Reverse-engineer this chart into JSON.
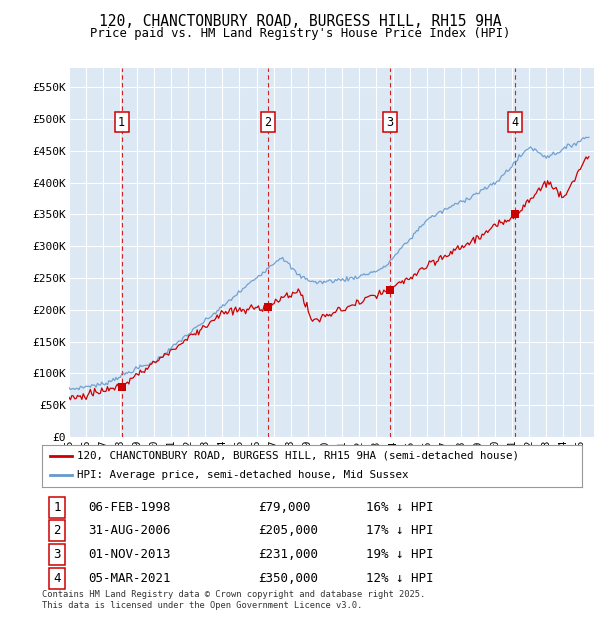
{
  "title_line1": "120, CHANCTONBURY ROAD, BURGESS HILL, RH15 9HA",
  "title_line2": "Price paid vs. HM Land Registry's House Price Index (HPI)",
  "ylim": [
    0,
    580000
  ],
  "yticks": [
    0,
    50000,
    100000,
    150000,
    200000,
    250000,
    300000,
    350000,
    400000,
    450000,
    500000,
    550000
  ],
  "ytick_labels": [
    "£0",
    "£50K",
    "£100K",
    "£150K",
    "£200K",
    "£250K",
    "£300K",
    "£350K",
    "£400K",
    "£450K",
    "£500K",
    "£550K"
  ],
  "plot_bg_color": "#dce9f5",
  "grid_color": "#ffffff",
  "sale_dates": [
    1998.09,
    2006.66,
    2013.83,
    2021.17
  ],
  "sale_prices": [
    79000,
    205000,
    231000,
    350000
  ],
  "sale_labels": [
    "1",
    "2",
    "3",
    "4"
  ],
  "transactions": [
    {
      "label": "1",
      "date": "06-FEB-1998",
      "price": "£79,000",
      "pct": "16% ↓ HPI"
    },
    {
      "label": "2",
      "date": "31-AUG-2006",
      "price": "£205,000",
      "pct": "17% ↓ HPI"
    },
    {
      "label": "3",
      "date": "01-NOV-2013",
      "price": "£231,000",
      "pct": "19% ↓ HPI"
    },
    {
      "label": "4",
      "date": "05-MAR-2021",
      "price": "£350,000",
      "pct": "12% ↓ HPI"
    }
  ],
  "legend_line1": "120, CHANCTONBURY ROAD, BURGESS HILL, RH15 9HA (semi-detached house)",
  "legend_line2": "HPI: Average price, semi-detached house, Mid Sussex",
  "footer": "Contains HM Land Registry data © Crown copyright and database right 2025.\nThis data is licensed under the Open Government Licence v3.0.",
  "red_color": "#cc0000",
  "blue_color": "#6699cc",
  "vline_color": "#cc0000"
}
